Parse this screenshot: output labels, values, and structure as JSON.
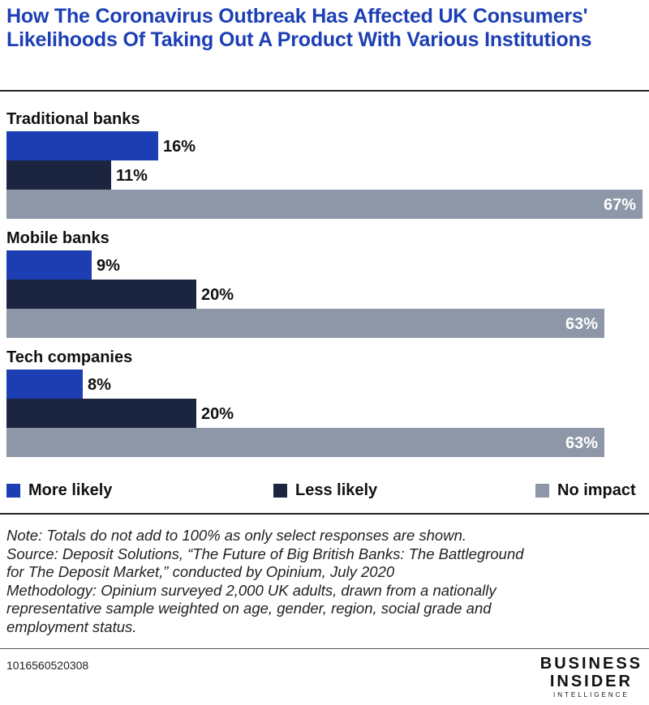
{
  "title": "How The Coronavirus Outbreak Has Affected UK Consumers' Likelihoods Of Taking Out A Product With Various Institutions",
  "colors": {
    "more_likely": "#1c3eb2",
    "less_likely": "#1b2540",
    "no_impact": "#8d97a7"
  },
  "chart_data": {
    "type": "bar",
    "orientation": "horizontal",
    "title": "How The Coronavirus Outbreak Has Affected UK Consumers' Likelihoods Of Taking Out A Product With Various Institutions",
    "categories": [
      "Traditional banks",
      "Mobile banks",
      "Tech companies"
    ],
    "series": [
      {
        "name": "More likely",
        "values": [
          16,
          9,
          8
        ],
        "labels": [
          "16%",
          "9%",
          "8%"
        ]
      },
      {
        "name": "Less likely",
        "values": [
          11,
          20,
          20
        ],
        "labels": [
          "11%",
          "20%",
          "20%"
        ]
      },
      {
        "name": "No impact",
        "values": [
          67,
          63,
          63
        ],
        "labels": [
          "67%",
          "63%",
          "63%"
        ]
      }
    ],
    "unit": "%",
    "xlim": [
      0,
      67
    ],
    "grid": false,
    "legend": "bottom"
  },
  "legend": [
    {
      "label": "More likely"
    },
    {
      "label": "Less likely"
    },
    {
      "label": "No impact"
    }
  ],
  "notes": [
    "Note: Totals do not add to 100% as only select responses are shown.",
    "Source: Deposit Solutions, “The Future of Big British Banks: The Battleground",
    "for The Deposit Market,” conducted by Opinium, July 2020",
    "Methodology: Opinium surveyed 2,000 UK adults, drawn from a nationally",
    "representative sample weighted on age, gender, region, social grade and",
    "employment status."
  ],
  "chart_id": "1016560520308",
  "brand": {
    "line1": "BUSINESS",
    "line2": "INSIDER",
    "line3": "INTELLIGENCE"
  }
}
